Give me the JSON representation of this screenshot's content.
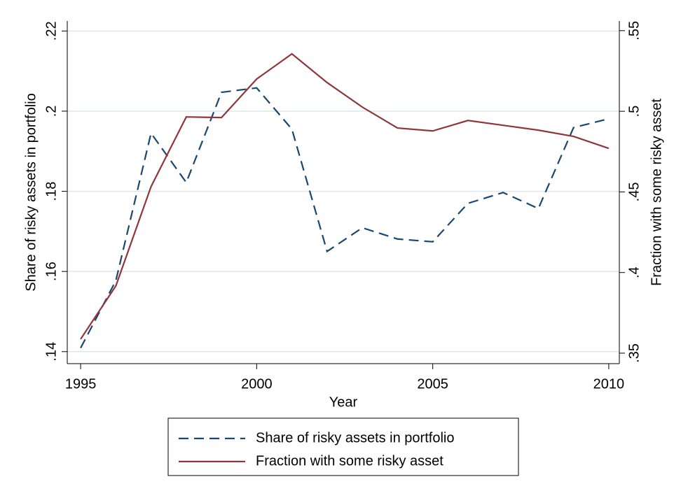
{
  "chart_data": {
    "type": "line",
    "x_label": "Year",
    "y_label": "Share of risky assets in portfolio",
    "y2_label": "Fraction with some risky asset",
    "x": [
      1995,
      1996,
      1997,
      1998,
      1999,
      2000,
      2001,
      2002,
      2003,
      2004,
      2005,
      2006,
      2007,
      2008,
      2009,
      2010
    ],
    "series": [
      {
        "name": "Share of risky assets in portfolio",
        "color": "#1a476f",
        "dashed": true,
        "axis": "y",
        "values": [
          0.1409,
          0.1577,
          0.1945,
          0.1822,
          0.2047,
          0.2058,
          0.1955,
          0.165,
          0.1709,
          0.1681,
          0.1674,
          0.177,
          0.1797,
          0.1757,
          0.1959,
          0.1981
        ]
      },
      {
        "name": "Fraction with some risky asset",
        "color": "#90353b",
        "dashed": false,
        "axis": "y2",
        "values": [
          0.3587,
          0.3917,
          0.4533,
          0.4965,
          0.4961,
          0.52,
          0.5356,
          0.5178,
          0.5026,
          0.4896,
          0.4878,
          0.4943,
          0.4913,
          0.4883,
          0.4844,
          0.477
        ]
      }
    ],
    "xlim": [
      1994.62,
      2010.3
    ],
    "xticks": [
      1995,
      2000,
      2005,
      2010
    ],
    "ylim": [
      0.137,
      0.2225
    ],
    "yticks": [
      {
        "value": 0.14,
        "label": ".14"
      },
      {
        "value": 0.16,
        "label": ".16"
      },
      {
        "value": 0.18,
        "label": ".18"
      },
      {
        "value": 0.2,
        "label": ".2"
      },
      {
        "value": 0.22,
        "label": ".22"
      }
    ],
    "y2lim": [
      0.3435,
      0.556
    ],
    "y2ticks": [
      {
        "value": 0.35,
        "label": ".35"
      },
      {
        "value": 0.4,
        "label": ".4"
      },
      {
        "value": 0.45,
        "label": ".45"
      },
      {
        "value": 0.5,
        "label": ".5"
      },
      {
        "value": 0.55,
        "label": ".55"
      }
    ],
    "grid": true
  }
}
